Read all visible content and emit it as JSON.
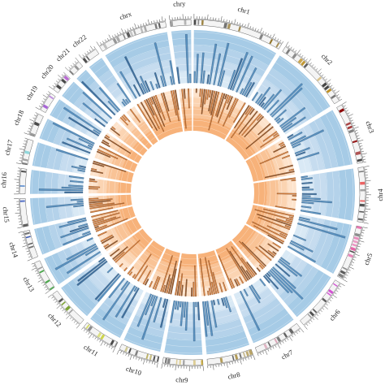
{
  "chart_data": {
    "type": "circos",
    "title": "",
    "chromosomes": [
      {
        "name": "chr1",
        "start_deg": 0.5,
        "end_deg": 31,
        "color": "#8c6d1f"
      },
      {
        "name": "chr2",
        "start_deg": 32.5,
        "end_deg": 58,
        "color": "#b8860b"
      },
      {
        "name": "chr3",
        "start_deg": 59.5,
        "end_deg": 80,
        "color": "#8b0000"
      },
      {
        "name": "chr4",
        "start_deg": 81.5,
        "end_deg": 100,
        "color": "#e83a3a"
      },
      {
        "name": "chr5",
        "start_deg": 101.5,
        "end_deg": 120,
        "color": "#e34a9a"
      },
      {
        "name": "chr6",
        "start_deg": 121.5,
        "end_deg": 140,
        "color": "#cc33cc"
      },
      {
        "name": "chr7",
        "start_deg": 141.5,
        "end_deg": 158,
        "color": "#c96a8a"
      },
      {
        "name": "chr8",
        "start_deg": 159.5,
        "end_deg": 175,
        "color": "#a78b3a"
      },
      {
        "name": "chr9",
        "start_deg": 176.5,
        "end_deg": 190,
        "color": "#c8a838"
      },
      {
        "name": "chr10",
        "start_deg": 191.5,
        "end_deg": 205,
        "color": "#a89a30"
      },
      {
        "name": "chr11",
        "start_deg": 206.5,
        "end_deg": 219,
        "color": "#c8d030"
      },
      {
        "name": "chr12",
        "start_deg": 220.5,
        "end_deg": 234,
        "color": "#6f9a1f"
      },
      {
        "name": "chr13",
        "start_deg": 235.5,
        "end_deg": 246,
        "color": "#3ea03e"
      },
      {
        "name": "chr14",
        "start_deg": 247.5,
        "end_deg": 257,
        "color": "#2f4fb0"
      },
      {
        "name": "chr15",
        "start_deg": 258.5,
        "end_deg": 268,
        "color": "#4060c0"
      },
      {
        "name": "chr16",
        "start_deg": 269.5,
        "end_deg": 278,
        "color": "#5f8fd0"
      },
      {
        "name": "chr17",
        "start_deg": 279.5,
        "end_deg": 288,
        "color": "#3fc0c8"
      },
      {
        "name": "chr18",
        "start_deg": 289.5,
        "end_deg": 297,
        "color": "#4a8a8a"
      },
      {
        "name": "chr19",
        "start_deg": 298.5,
        "end_deg": 305,
        "color": "#9a4ad0"
      },
      {
        "name": "chr20",
        "start_deg": 306.5,
        "end_deg": 313,
        "color": "#b86ad0"
      },
      {
        "name": "chr21",
        "start_deg": 314.5,
        "end_deg": 319,
        "color": "#c070d8"
      },
      {
        "name": "chr22",
        "start_deg": 320.5,
        "end_deg": 326,
        "color": "#b0a8c0"
      },
      {
        "name": "chrx",
        "start_deg": 327.5,
        "end_deg": 351,
        "color": "#8e8e8e"
      },
      {
        "name": "chry",
        "start_deg": 352.5,
        "end_deg": 359.5,
        "color": "#aaaaaa"
      }
    ],
    "tracks": [
      {
        "name": "",
        "kind": "histogram",
        "color": "#aacde8",
        "bar_color": "#4a87b8",
        "direction": "outward"
      },
      {
        "name": "",
        "kind": "histogram",
        "color": "#fad2ad",
        "bar_color": "#e08a3c",
        "direction": "inward"
      }
    ],
    "grid": true,
    "legend": "none",
    "colors": {
      "blue_track_fill": "#a6cbe6",
      "blue_track_light": "#d9e9f5",
      "blue_bar": "#4a87b8",
      "blue_bar_dark": "#2b5f8f",
      "orange_track_fill": "#f7b27a",
      "orange_track_light": "#fde3cc",
      "orange_bar": "#e07a2c",
      "orange_bar_dark": "#8a4a1a"
    }
  }
}
